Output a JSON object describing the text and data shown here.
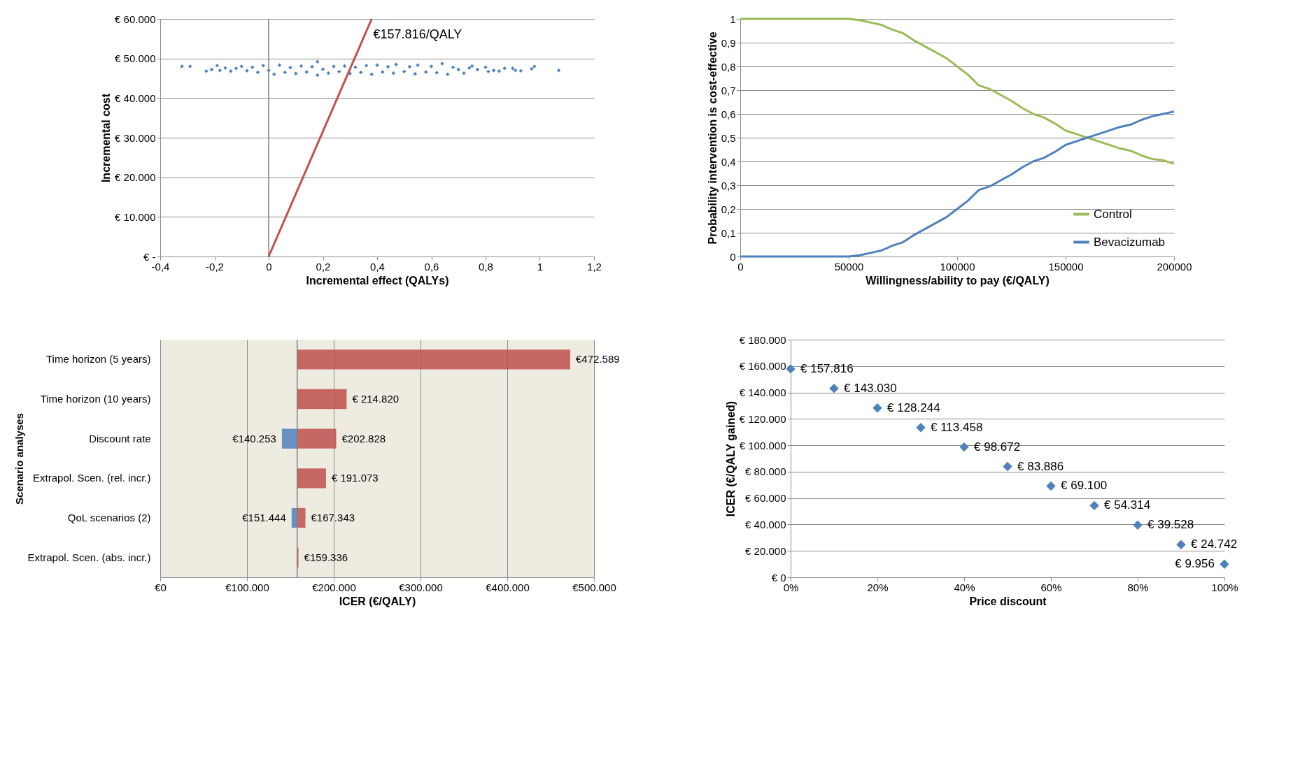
{
  "chart_data": [
    {
      "type": "scatter",
      "xlabel": "Incremental effect (QALYs)",
      "ylabel": "Incremental cost",
      "marker": "diamond",
      "grid": "y",
      "xlim": [
        -0.4,
        1.2
      ],
      "xticks": [
        {
          "value": -0.4,
          "label": "-0,4"
        },
        {
          "value": -0.2,
          "label": "-0,2"
        },
        0,
        {
          "value": 0.2,
          "label": "0,2"
        },
        {
          "value": 0.4,
          "label": "0,4"
        },
        {
          "value": 0.6,
          "label": "0,6"
        },
        {
          "value": 0.8,
          "label": "0,8"
        },
        1,
        {
          "value": 1.2,
          "label": "1,2"
        }
      ],
      "ylim": [
        0,
        60000
      ],
      "yticks": [
        {
          "value": 0,
          "label": "€ -"
        },
        {
          "value": 10000,
          "label": "€ 10.000"
        },
        {
          "value": 20000,
          "label": "€ 20.000"
        },
        {
          "value": 30000,
          "label": "€ 30.000"
        },
        {
          "value": 40000,
          "label": "€ 40.000"
        },
        {
          "value": 50000,
          "label": "€ 50.000"
        },
        {
          "value": 60000,
          "label": "€ 60.000"
        }
      ],
      "ref_lines": [
        {
          "axis": "x",
          "value": 0,
          "color": "#808080"
        }
      ],
      "series": [
        {
          "color": "#4f81bd",
          "x": [
            -0.32,
            -0.29,
            -0.23,
            -0.21,
            -0.19,
            -0.18,
            -0.16,
            -0.14,
            -0.12,
            -0.1,
            -0.08,
            -0.06,
            -0.04,
            -0.02,
            0.0,
            0.02,
            0.04,
            0.06,
            0.08,
            0.1,
            0.12,
            0.14,
            0.16,
            0.18,
            0.18,
            0.2,
            0.22,
            0.24,
            0.26,
            0.28,
            0.3,
            0.32,
            0.34,
            0.36,
            0.38,
            0.4,
            0.42,
            0.44,
            0.46,
            0.47,
            0.5,
            0.52,
            0.54,
            0.55,
            0.58,
            0.6,
            0.62,
            0.64,
            0.66,
            0.68,
            0.7,
            0.72,
            0.74,
            0.75,
            0.77,
            0.8,
            0.81,
            0.83,
            0.85,
            0.87,
            0.9,
            0.91,
            0.93,
            0.97,
            0.98,
            1.07
          ],
          "values": [
            48000,
            48000,
            46800,
            47200,
            48200,
            47000,
            47600,
            46800,
            47500,
            48000,
            46900,
            47800,
            46500,
            48200,
            47000,
            46000,
            48300,
            46500,
            47700,
            46200,
            48100,
            46600,
            47900,
            49200,
            45800,
            47300,
            46300,
            48000,
            46700,
            48100,
            46200,
            47800,
            46500,
            48200,
            46000,
            48300,
            46600,
            47900,
            46300,
            48500,
            46700,
            47900,
            46100,
            48300,
            46600,
            48000,
            46400,
            48700,
            46000,
            47800,
            47200,
            46300,
            47600,
            48100,
            47200,
            47800,
            46700,
            47000,
            46800,
            47500,
            47500,
            47000,
            46900,
            47400,
            48000,
            47000
          ]
        },
        {
          "type": "line",
          "marker": "none",
          "color": "#c0504d",
          "x": [
            0,
            0.38
          ],
          "values": [
            0,
            60000
          ]
        }
      ],
      "annotations": [
        {
          "text": "€157.816/QALY",
          "x": 0.355,
          "y": 56000
        }
      ]
    },
    {
      "type": "line",
      "xlabel": "Willingness/ability to pay (€/QALY)",
      "ylabel": "Probability intervention is cost-effective",
      "grid": "y",
      "legend": "bottom right",
      "line_style": "solid",
      "xlim": [
        0,
        200000
      ],
      "xticks": [
        0,
        50000,
        100000,
        150000,
        200000
      ],
      "ylim": [
        0,
        1
      ],
      "yticks": [
        0,
        {
          "value": 0.1,
          "label": "0,1"
        },
        {
          "value": 0.2,
          "label": "0,2"
        },
        {
          "value": 0.3,
          "label": "0,3"
        },
        {
          "value": 0.4,
          "label": "0,4"
        },
        {
          "value": 0.5,
          "label": "0,5"
        },
        {
          "value": 0.6,
          "label": "0,6"
        },
        {
          "value": 0.7,
          "label": "0,7"
        },
        {
          "value": 0.8,
          "label": "0,8"
        },
        {
          "value": 0.9,
          "label": "0,9"
        },
        1
      ],
      "x": [
        0,
        50000,
        55000,
        60000,
        65000,
        70000,
        75000,
        80000,
        85000,
        90000,
        95000,
        100000,
        105000,
        110000,
        115000,
        120000,
        125000,
        130000,
        135000,
        140000,
        145000,
        150000,
        155000,
        160000,
        165000,
        170000,
        175000,
        180000,
        185000,
        190000,
        195000,
        200000
      ],
      "series": [
        {
          "name": "Control",
          "color": "#9bbb59",
          "values": [
            1,
            1,
            0.995,
            0.985,
            0.975,
            0.955,
            0.94,
            0.91,
            0.885,
            0.86,
            0.835,
            0.8,
            0.765,
            0.72,
            0.705,
            0.68,
            0.655,
            0.625,
            0.6,
            0.585,
            0.56,
            0.53,
            0.515,
            0.5,
            0.485,
            0.47,
            0.455,
            0.445,
            0.425,
            0.41,
            0.405,
            0.39
          ]
        },
        {
          "name": "Bevacizumab",
          "color": "#4f81bd",
          "values": [
            0,
            0,
            0.005,
            0.015,
            0.025,
            0.045,
            0.06,
            0.09,
            0.115,
            0.14,
            0.165,
            0.2,
            0.235,
            0.28,
            0.295,
            0.32,
            0.345,
            0.375,
            0.4,
            0.415,
            0.44,
            0.47,
            0.485,
            0.5,
            0.515,
            0.53,
            0.545,
            0.555,
            0.575,
            0.59,
            0.6,
            0.61
          ]
        }
      ]
    },
    {
      "type": "bar",
      "orientation": "horizontal",
      "xlabel": "ICER (€/QALY)",
      "ylabel": "Scenario analyses",
      "grid": "x",
      "categories": [
        "Time horizon (5 years)",
        "Time horizon (10 years)",
        "Discount rate",
        "Extrapol. Scen. (rel. incr.)",
        "QoL scenarios (2)",
        "Extrapol. Scen. (abs. incr.)"
      ],
      "xlim": [
        0,
        500000
      ],
      "xticks": [
        {
          "value": 0,
          "label": "€0"
        },
        {
          "value": 100000,
          "label": "€100.000"
        },
        {
          "value": 200000,
          "label": "€200.000"
        },
        {
          "value": 300000,
          "label": "€300.000"
        },
        {
          "value": 400000,
          "label": "€400.000"
        },
        {
          "value": 500000,
          "label": "€500.000"
        }
      ],
      "ref_lines": [
        {
          "axis": "x",
          "value": 157816,
          "color": "#808080"
        }
      ],
      "series": [
        {
          "color": "#c0504d",
          "base": [
            157816,
            157816,
            157816,
            157816,
            157816,
            157816
          ],
          "values": [
            314773,
            57004,
            45012,
            33257,
            9527,
            1520
          ],
          "value_labels": [
            "€472.589",
            "€ 214.820",
            "€202.828",
            "€ 191.073",
            "€167.343",
            "€159.336"
          ]
        },
        {
          "color": "#4f81bd",
          "base": [
            null,
            null,
            157816,
            null,
            157816,
            null
          ],
          "values": [
            null,
            null,
            -17563,
            null,
            -6372,
            null
          ],
          "value_labels": [
            null,
            null,
            "€140.253",
            null,
            "€151.444",
            null
          ]
        }
      ]
    },
    {
      "type": "scatter",
      "xlabel": "Price discount",
      "ylabel": "ICER (€/QALY gained)",
      "marker": "diamond",
      "grid": "y",
      "xlim": [
        0,
        100
      ],
      "xticks": [
        {
          "value": 0,
          "label": "0%"
        },
        {
          "value": 20,
          "label": "20%"
        },
        {
          "value": 40,
          "label": "40%"
        },
        {
          "value": 60,
          "label": "60%"
        },
        {
          "value": 80,
          "label": "80%"
        },
        {
          "value": 100,
          "label": "100%"
        }
      ],
      "ylim": [
        0,
        180000
      ],
      "yticks": [
        {
          "value": 0,
          "label": "€ 0"
        },
        {
          "value": 20000,
          "label": "€ 20.000"
        },
        {
          "value": 40000,
          "label": "€ 40.000"
        },
        {
          "value": 60000,
          "label": "€ 60.000"
        },
        {
          "value": 80000,
          "label": "€ 80.000"
        },
        {
          "value": 100000,
          "label": "€ 100.000"
        },
        {
          "value": 120000,
          "label": "€ 120.000"
        },
        {
          "value": 140000,
          "label": "€ 140.000"
        },
        {
          "value": 160000,
          "label": "€ 160.000"
        },
        {
          "value": 180000,
          "label": "€ 180.000"
        }
      ],
      "series": [
        {
          "color": "#4f81bd",
          "x": [
            0,
            10,
            20,
            30,
            40,
            50,
            60,
            70,
            80,
            90,
            100
          ],
          "values": [
            157816,
            143030,
            128244,
            113458,
            98672,
            83886,
            69100,
            54314,
            39528,
            24742,
            9956
          ],
          "value_labels": [
            "€ 157.816",
            "€ 143.030",
            "€ 128.244",
            "€ 113.458",
            "€ 98.672",
            "€ 83.886",
            "€ 69.100",
            "€ 54.314",
            "€ 39.528",
            "€ 24.742",
            "€ 9.956"
          ]
        }
      ]
    }
  ]
}
